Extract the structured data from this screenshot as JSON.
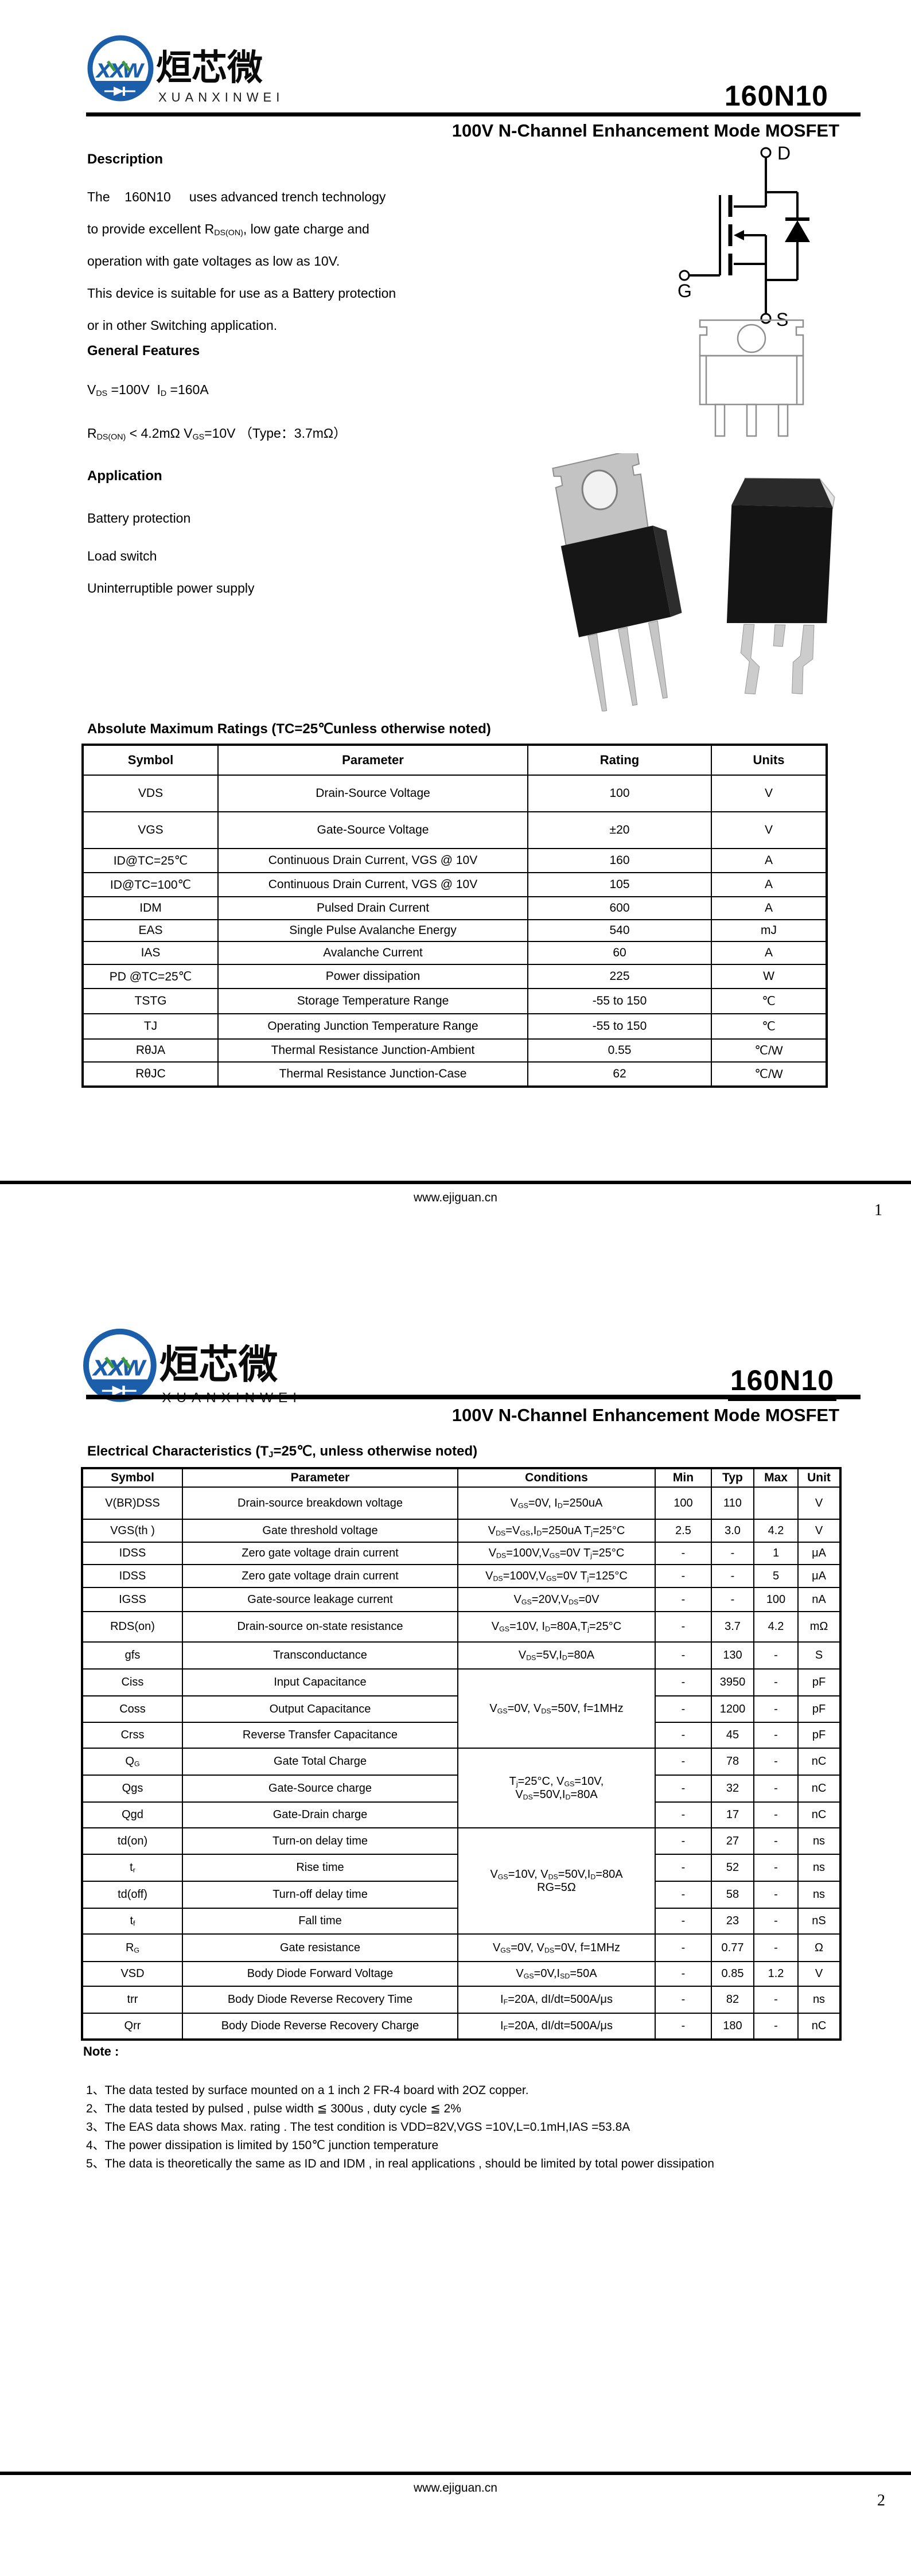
{
  "brand": {
    "cn": "烜芯微",
    "en": "XUANXINWEI"
  },
  "doc": {
    "part": "160N10",
    "subtitle": "100V N-Channel Enhancement Mode MOSFET",
    "site": "www.ejiguan.cn"
  },
  "p1": {
    "desc_title": "Description",
    "desc": [
      "The    160N10     uses advanced trench technology",
      "to provide excellent R~DS(ON)~, low gate charge and",
      "operation with gate voltages as low as 10V.",
      "This device is suitable for use as a Battery protection",
      "or in other Switching application."
    ],
    "feat_title": "General Features",
    "feat": [
      "V~DS~ =100V  I~D~ =160A",
      "R~DS(ON)~ < 4.2mΩ V~GS~=10V （Type：3.7mΩ）"
    ],
    "app_title": "Application",
    "app": [
      "Battery protection",
      "Load switch",
      "Uninterruptible power supply"
    ],
    "sym": {
      "d": "D",
      "g": "G",
      "s": "S"
    },
    "amr_title": "Absolute Maximum Ratings (TC=25℃unless otherwise noted)",
    "amr_headers": [
      "Symbol",
      "Parameter",
      "Rating",
      "Units"
    ],
    "amr": [
      {
        "sym": "VDS",
        "par": "Drain-Source Voltage",
        "rat": "100",
        "unit": "V"
      },
      {
        "sym": "VGS",
        "par": "Gate-Source Voltage",
        "rat": "±20",
        "unit": "V"
      },
      {
        "sym": "ID@TC=25℃",
        "par": "Continuous Drain Current, VGS @ 10V",
        "rat": "160",
        "unit": "A"
      },
      {
        "sym": "ID@TC=100℃",
        "par": "Continuous Drain Current, VGS @ 10V",
        "rat": "105",
        "unit": "A"
      },
      {
        "sym": "IDM",
        "par": "Pulsed Drain Current",
        "rat": "600",
        "unit": "A"
      },
      {
        "sym": "EAS",
        "par": "Single Pulse Avalanche Energy",
        "rat": "540",
        "unit": "mJ"
      },
      {
        "sym": "IAS",
        "par": "Avalanche Current",
        "rat": "60",
        "unit": "A"
      },
      {
        "sym": "PD @TC=25℃",
        "par": "Power dissipation",
        "rat": "225",
        "unit": "W"
      },
      {
        "sym": "TSTG",
        "par": "Storage Temperature Range",
        "rat": "-55 to 150",
        "unit": "℃"
      },
      {
        "sym": "TJ",
        "par": "Operating Junction Temperature Range",
        "rat": "-55 to 150",
        "unit": "℃"
      },
      {
        "sym": "RθJA",
        "par": "Thermal Resistance Junction-Ambient",
        "rat": "0.55",
        "unit": "℃/W"
      },
      {
        "sym": "RθJC",
        "par": "Thermal Resistance Junction-Case",
        "rat": "62",
        "unit": "℃/W"
      }
    ],
    "page": "1"
  },
  "p2": {
    "ec_title": "Electrical Characteristics (T~J~=25℃, unless otherwise noted)",
    "ec_headers": [
      "Symbol",
      "Parameter",
      "Conditions",
      "Min",
      "Typ",
      "Max",
      "Unit"
    ],
    "ec": [
      {
        "sym": "V(BR)DSS",
        "par": "Drain-source breakdown voltage",
        "cond": "V~GS~=0V, I~D~=250uA",
        "min": "100",
        "typ": "110",
        "max": "",
        "unit": "V"
      },
      {
        "sym": "VGS(th )",
        "par": "Gate threshold voltage",
        "cond": "V~DS~=V~GS~,I~D~=250uA T~j~=25°C",
        "min": "2.5",
        "typ": "3.0",
        "max": "4.2",
        "unit": "V"
      },
      {
        "sym": "IDSS",
        "par": "Zero gate voltage drain current",
        "cond": "V~DS~=100V,V~GS~=0V  T~j~=25°C",
        "min": "-",
        "typ": "-",
        "max": "1",
        "unit": "μA"
      },
      {
        "sym": "IDSS",
        "par": "Zero gate voltage drain current",
        "cond": "V~DS~=100V,V~GS~=0V  T~j~=125°C",
        "min": "-",
        "typ": "-",
        "max": "5",
        "unit": "μA"
      },
      {
        "sym": "IGSS",
        "par": "Gate-source leakage current",
        "cond": "V~GS~=20V,V~DS~=0V",
        "min": "-",
        "typ": "-",
        "max": "100",
        "unit": "nA"
      },
      {
        "sym": "RDS(on)",
        "par": "Drain-source on-state resistance",
        "cond": "V~GS~=10V, I~D~=80A,T~j~=25°C",
        "min": "-",
        "typ": "3.7",
        "max": "4.2",
        "unit": "mΩ"
      },
      {
        "sym": "gfs",
        "par": "Transconductance",
        "cond": "V~DS~=5V,I~D~=80A",
        "min": "-",
        "typ": "130",
        "max": "-",
        "unit": "S"
      },
      {
        "sym": "Ciss",
        "par": "Input Capacitance",
        "cond": "V~GS~=0V, V~DS~=50V, f=1MHz",
        "min": "-",
        "typ": "3950",
        "max": "-",
        "unit": "pF"
      },
      {
        "sym": "Coss",
        "par": "Output Capacitance",
        "min": "-",
        "typ": "1200",
        "max": "-",
        "unit": "pF"
      },
      {
        "sym": "Crss",
        "par": "Reverse Transfer Capacitance",
        "min": "-",
        "typ": "45",
        "max": "-",
        "unit": "pF"
      },
      {
        "sym": "Q~G~",
        "par": "Gate Total Charge",
        "cond": "T~j~=25°C, V~GS~=10V,\nV~DS~=50V,I~D~=80A",
        "min": "-",
        "typ": "78",
        "max": "-",
        "unit": "nC"
      },
      {
        "sym": "Qgs",
        "par": "Gate-Source charge",
        "min": "-",
        "typ": "32",
        "max": "-",
        "unit": "nC"
      },
      {
        "sym": "Qgd",
        "par": "Gate-Drain charge",
        "min": "-",
        "typ": "17",
        "max": "-",
        "unit": "nC"
      },
      {
        "sym": "td(on)",
        "par": "Turn-on delay time",
        "cond": "V~GS~=10V, V~DS~=50V,I~D~=80A\nRG=5Ω",
        "min": "-",
        "typ": "27",
        "max": "-",
        "unit": "ns"
      },
      {
        "sym": "t~r~",
        "par": "Rise time",
        "min": "-",
        "typ": "52",
        "max": "-",
        "unit": "ns"
      },
      {
        "sym": "td(off)",
        "par": "Turn-off delay time",
        "min": "-",
        "typ": "58",
        "max": "-",
        "unit": "ns"
      },
      {
        "sym": "t~f~",
        "par": "Fall time",
        "min": "-",
        "typ": "23",
        "max": "-",
        "unit": "nS"
      },
      {
        "sym": "R~G~",
        "par": "Gate resistance",
        "cond": "V~GS~=0V, V~DS~=0V, f=1MHz",
        "min": "-",
        "typ": "0.77",
        "max": "-",
        "unit": "Ω"
      },
      {
        "sym": "VSD",
        "par": "Body Diode Forward Voltage",
        "cond": "V~GS~=0V,I~SD~=50A",
        "min": "-",
        "typ": "0.85",
        "max": "1.2",
        "unit": "V"
      },
      {
        "sym": "trr",
        "par": "Body Diode Reverse Recovery Time",
        "cond": "I~F~=20A, dI/dt=500A/μs",
        "min": "-",
        "typ": "82",
        "max": "-",
        "unit": "ns"
      },
      {
        "sym": "Qrr",
        "par": "Body Diode Reverse Recovery Charge",
        "cond": "I~F~=20A, dI/dt=500A/μs",
        "min": "-",
        "typ": "180",
        "max": "-",
        "unit": "nC"
      }
    ],
    "note_title": "Note :",
    "notes": [
      "1、The data tested by surface mounted on a 1 inch 2  FR-4 board with 2OZ copper.",
      "2、The data tested by pulsed , pulse width ≦ 300us , duty cycle ≦ 2%",
      "3、The EAS data shows Max. rating . The test condition is VDD=82V,VGS =10V,L=0.1mH,IAS =53.8A",
      "4、The power dissipation is limited by 150℃ junction temperature",
      "5、The data is theoretically the same as ID and IDM , in real applications , should be limited by total power dissipation"
    ],
    "page": "2"
  }
}
